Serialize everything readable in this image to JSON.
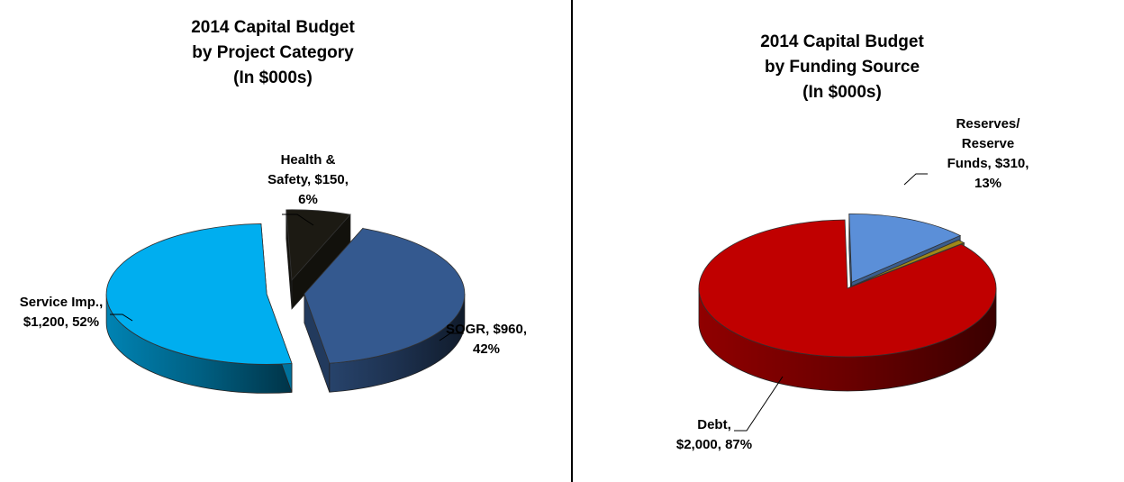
{
  "chart_data": [
    {
      "type": "pie",
      "title": [
        "2014 Capital Budget",
        "by Project Category",
        "(In $000s)"
      ],
      "slices": [
        {
          "label": "Health & Safety",
          "value": 150,
          "percent": 6,
          "label_lines": [
            "Health &",
            "Safety, $150,",
            "6%"
          ],
          "color": "#1c1a13"
        },
        {
          "label": "SOGR",
          "value": 960,
          "percent": 42,
          "label_lines": [
            "SOGR, $960,",
            "42%"
          ],
          "color": "#34598f"
        },
        {
          "label": "Service Imp.",
          "value": 1200,
          "percent": 52,
          "label_lines": [
            "Service Imp.,",
            "$1,200, 52%"
          ],
          "color": "#00aeef"
        }
      ]
    },
    {
      "type": "pie",
      "title": [
        "2014 Capital Budget",
        "by Funding Source",
        "(In $000s)"
      ],
      "slices": [
        {
          "label": "Reserves/ Reserve Funds",
          "value": 310,
          "percent": 13,
          "label_lines": [
            "Reserves/",
            "Reserve",
            "Funds, $310,",
            "13%"
          ],
          "color": "#5b8fd8"
        },
        {
          "label": "",
          "value": 20,
          "percent": 1,
          "label_lines": [],
          "color": "#a08818"
        },
        {
          "label": "Debt",
          "value": 2000,
          "percent": 87,
          "label_lines": [
            "Debt,",
            "$2,000, 87%"
          ],
          "color": "#c00000"
        }
      ]
    }
  ]
}
